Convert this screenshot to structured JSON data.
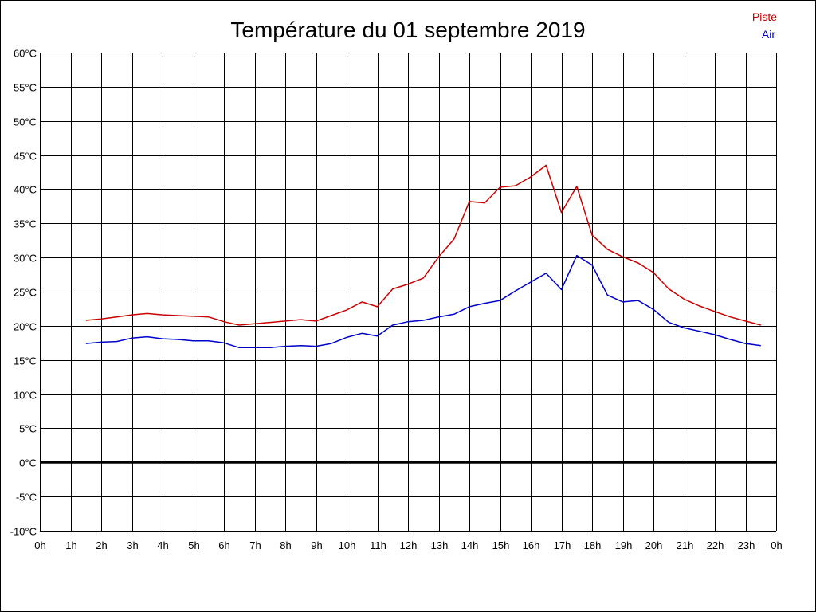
{
  "chart_data": {
    "type": "line",
    "title": "Température du 01 septembre 2019",
    "xlabel": "",
    "ylabel": "",
    "x_unit": "hours",
    "xlim": [
      0,
      24
    ],
    "ylim": [
      -10,
      60
    ],
    "y_ticks": [
      -10,
      -5,
      0,
      5,
      10,
      15,
      20,
      25,
      30,
      35,
      40,
      45,
      50,
      55,
      60
    ],
    "y_tick_labels": [
      "-10°C",
      "-5°C",
      "0°C",
      "5°C",
      "10°C",
      "15°C",
      "20°C",
      "25°C",
      "30°C",
      "35°C",
      "40°C",
      "45°C",
      "50°C",
      "55°C",
      "60°C"
    ],
    "x_ticks": [
      0,
      1,
      2,
      3,
      4,
      5,
      6,
      7,
      8,
      9,
      10,
      11,
      12,
      13,
      14,
      15,
      16,
      17,
      18,
      19,
      20,
      21,
      22,
      23,
      24
    ],
    "x_tick_labels": [
      "0h",
      "1h",
      "2h",
      "3h",
      "4h",
      "5h",
      "6h",
      "7h",
      "8h",
      "9h",
      "10h",
      "11h",
      "12h",
      "13h",
      "14h",
      "15h",
      "16h",
      "17h",
      "18h",
      "19h",
      "20h",
      "21h",
      "22h",
      "23h",
      "0h"
    ],
    "grid": true,
    "legend_position": "top-right",
    "zero_line": true,
    "series": [
      {
        "name": "Piste",
        "color": "#cc0000",
        "points": [
          [
            1.5,
            20.8
          ],
          [
            2.0,
            21.0
          ],
          [
            2.5,
            21.3
          ],
          [
            3.0,
            21.6
          ],
          [
            3.5,
            21.8
          ],
          [
            4.0,
            21.6
          ],
          [
            4.5,
            21.5
          ],
          [
            5.0,
            21.4
          ],
          [
            5.5,
            21.3
          ],
          [
            6.0,
            20.6
          ],
          [
            6.5,
            20.1
          ],
          [
            7.0,
            20.3
          ],
          [
            7.5,
            20.5
          ],
          [
            8.0,
            20.7
          ],
          [
            8.5,
            20.9
          ],
          [
            9.0,
            20.7
          ],
          [
            9.5,
            21.5
          ],
          [
            10.0,
            22.3
          ],
          [
            10.5,
            23.5
          ],
          [
            11.0,
            22.8
          ],
          [
            11.5,
            25.4
          ],
          [
            12.0,
            26.1
          ],
          [
            12.5,
            27.0
          ],
          [
            13.0,
            30.1
          ],
          [
            13.5,
            32.7
          ],
          [
            14.0,
            38.2
          ],
          [
            14.5,
            38.0
          ],
          [
            15.0,
            40.3
          ],
          [
            15.5,
            40.5
          ],
          [
            16.0,
            41.8
          ],
          [
            16.5,
            43.5
          ],
          [
            17.0,
            36.6
          ],
          [
            17.5,
            40.4
          ],
          [
            18.0,
            33.3
          ],
          [
            18.5,
            31.2
          ],
          [
            19.0,
            30.1
          ],
          [
            19.5,
            29.2
          ],
          [
            20.0,
            27.8
          ],
          [
            20.5,
            25.4
          ],
          [
            21.0,
            23.9
          ],
          [
            21.5,
            22.9
          ],
          [
            22.0,
            22.1
          ],
          [
            22.5,
            21.3
          ],
          [
            23.0,
            20.7
          ],
          [
            23.5,
            20.1
          ]
        ]
      },
      {
        "name": "Air",
        "color": "#0000cc",
        "points": [
          [
            1.5,
            17.4
          ],
          [
            2.0,
            17.6
          ],
          [
            2.5,
            17.7
          ],
          [
            3.0,
            18.2
          ],
          [
            3.5,
            18.4
          ],
          [
            4.0,
            18.1
          ],
          [
            4.5,
            18.0
          ],
          [
            5.0,
            17.8
          ],
          [
            5.5,
            17.8
          ],
          [
            6.0,
            17.5
          ],
          [
            6.5,
            16.8
          ],
          [
            7.0,
            16.8
          ],
          [
            7.5,
            16.8
          ],
          [
            8.0,
            17.0
          ],
          [
            8.5,
            17.1
          ],
          [
            9.0,
            17.0
          ],
          [
            9.5,
            17.4
          ],
          [
            10.0,
            18.3
          ],
          [
            10.5,
            18.9
          ],
          [
            11.0,
            18.5
          ],
          [
            11.5,
            20.1
          ],
          [
            12.0,
            20.6
          ],
          [
            12.5,
            20.8
          ],
          [
            13.0,
            21.3
          ],
          [
            13.5,
            21.7
          ],
          [
            14.0,
            22.8
          ],
          [
            14.5,
            23.3
          ],
          [
            15.0,
            23.7
          ],
          [
            15.5,
            25.1
          ],
          [
            16.0,
            26.4
          ],
          [
            16.5,
            27.7
          ],
          [
            17.0,
            25.3
          ],
          [
            17.5,
            30.3
          ],
          [
            18.0,
            28.9
          ],
          [
            18.5,
            24.5
          ],
          [
            19.0,
            23.5
          ],
          [
            19.5,
            23.7
          ],
          [
            20.0,
            22.4
          ],
          [
            20.5,
            20.5
          ],
          [
            21.0,
            19.7
          ],
          [
            21.5,
            19.2
          ],
          [
            22.0,
            18.7
          ],
          [
            22.5,
            18.0
          ],
          [
            23.0,
            17.4
          ],
          [
            23.5,
            17.1
          ]
        ]
      }
    ]
  }
}
